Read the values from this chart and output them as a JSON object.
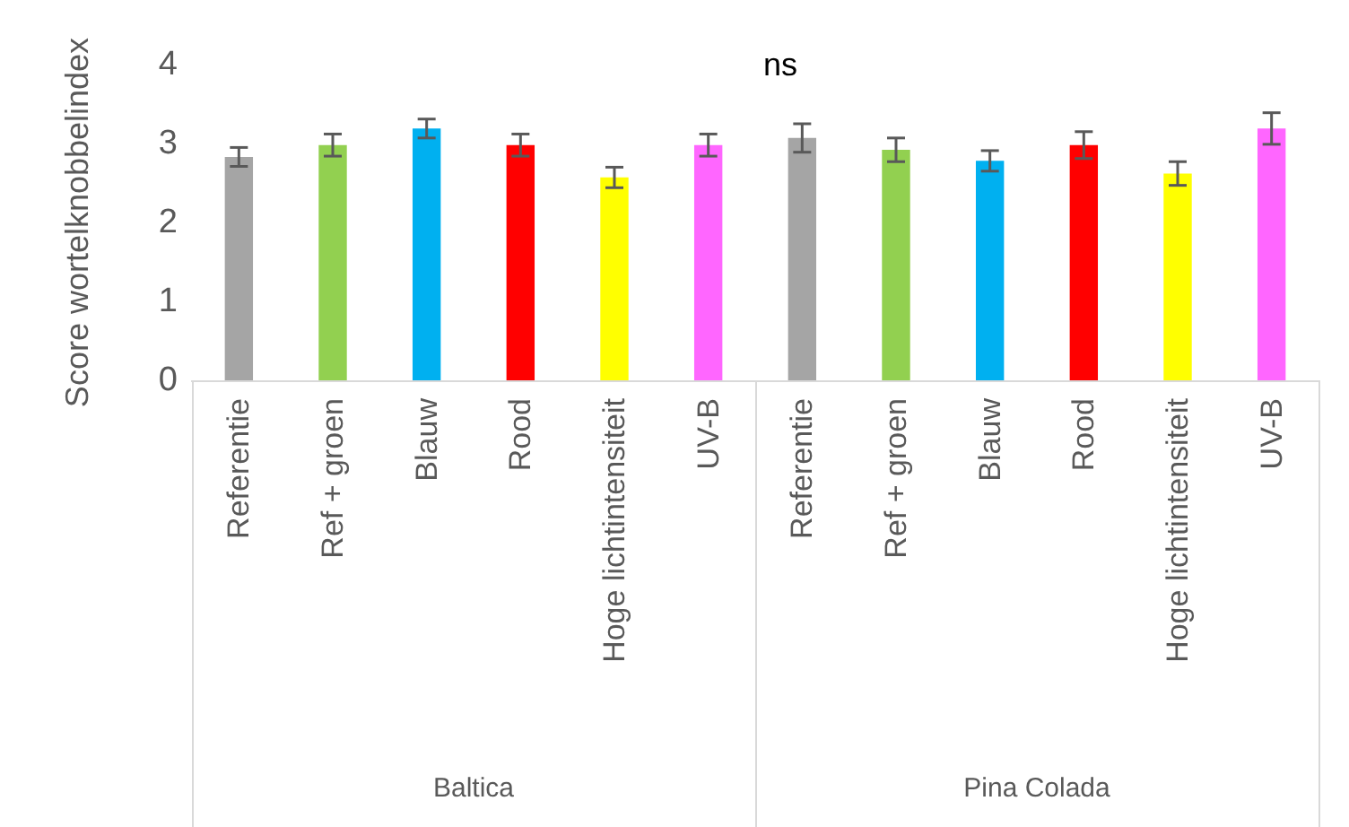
{
  "chart_data": {
    "type": "bar",
    "title": "ns",
    "ylabel": "Score wortelknobbelindex",
    "categories": [
      "Referentie",
      "Ref + groen",
      "Blauw",
      "Rood",
      "Hoge lichtintensiteit",
      "UV-B",
      "Referentie",
      "Ref + groen",
      "Blauw",
      "Rood",
      "Hoge lichtintensiteit",
      "UV-B"
    ],
    "values": [
      2.83,
      2.98,
      3.19,
      2.98,
      2.57,
      2.98,
      3.07,
      2.92,
      2.78,
      2.98,
      2.62,
      3.19
    ],
    "errors": [
      0.12,
      0.14,
      0.12,
      0.14,
      0.13,
      0.14,
      0.18,
      0.15,
      0.13,
      0.17,
      0.15,
      0.2
    ],
    "colors": [
      "#a5a5a5",
      "#92d050",
      "#00b0f0",
      "#ff0000",
      "#ffff00",
      "#ff66ff",
      "#a5a5a5",
      "#92d050",
      "#00b0f0",
      "#ff0000",
      "#ffff00",
      "#ff66ff"
    ],
    "annotations": [
      "Baltica",
      "Pina Colada"
    ],
    "ylim": [
      0,
      4
    ],
    "yticks": [
      0,
      1,
      2,
      3,
      4
    ],
    "grid": false
  }
}
